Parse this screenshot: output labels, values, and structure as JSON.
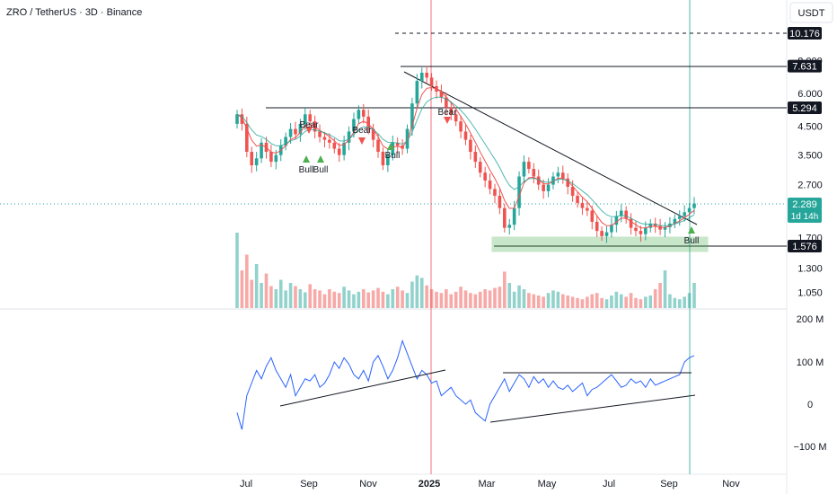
{
  "header": {
    "symbol_title": "ZRO / TetherUS · 3D · Binance",
    "currency_button": "USDT"
  },
  "chart_data": [
    {
      "type": "candlestick",
      "title": "ZRO / TetherUS · 3D · Binance",
      "scale": "log",
      "price_axis_ticks": [
        1.05,
        1.3,
        1.7,
        2.7,
        3.5,
        4.5,
        6.0,
        8.0
      ],
      "price_axis_tick_labels": [
        "1.050",
        "1.300",
        "1.700",
        "2.700",
        "3.500",
        "4.500",
        "6.000",
        "8.000"
      ],
      "time_axis_labels": [
        "Jul",
        "Sep",
        "Nov",
        "2025",
        "Mar",
        "May",
        "Jul",
        "Sep",
        "Nov"
      ],
      "price_labels": [
        {
          "value": 10.176,
          "text": "10.176",
          "style": "dashed"
        },
        {
          "value": 7.631,
          "text": "7.631",
          "style": "solid"
        },
        {
          "value": 5.294,
          "text": "5.294",
          "style": "solid"
        },
        {
          "value": 2.289,
          "text": "2.289",
          "style": "current",
          "countdown": "1d 14h"
        },
        {
          "value": 1.576,
          "text": "1.576",
          "style": "solid"
        }
      ],
      "signal_labels": [
        "Bear",
        "Bull",
        "Bull",
        "Bear",
        "Bull",
        "Bear",
        "Bull"
      ],
      "close_series": [
        5.0,
        4.6,
        3.6,
        3.2,
        3.4,
        3.9,
        3.6,
        3.3,
        3.5,
        3.8,
        4.1,
        4.4,
        4.2,
        4.6,
        5.0,
        4.7,
        4.3,
        4.1,
        4.0,
        3.9,
        3.7,
        3.5,
        3.9,
        4.3,
        4.8,
        5.2,
        4.9,
        4.4,
        4.0,
        3.6,
        3.2,
        3.5,
        3.9,
        3.8,
        3.7,
        4.4,
        5.5,
        6.7,
        7.2,
        6.9,
        6.4,
        6.1,
        5.8,
        5.3,
        5.0,
        4.7,
        4.3,
        4.0,
        3.6,
        3.3,
        3.0,
        2.8,
        2.6,
        2.45,
        2.2,
        1.85,
        1.9,
        2.2,
        2.9,
        3.3,
        3.1,
        2.9,
        2.7,
        2.55,
        2.7,
        2.9,
        3.0,
        2.85,
        2.65,
        2.45,
        2.3,
        2.2,
        2.15,
        1.95,
        1.8,
        1.72,
        1.78,
        1.9,
        2.05,
        2.15,
        2.0,
        1.85,
        1.8,
        1.75,
        1.85,
        1.92,
        1.88,
        1.82,
        1.86,
        1.92,
        2.0,
        2.05,
        2.12,
        2.2,
        2.289
      ],
      "volume_series": [
        120,
        60,
        85,
        45,
        70,
        40,
        55,
        35,
        30,
        45,
        28,
        40,
        35,
        30,
        25,
        38,
        30,
        28,
        22,
        30,
        26,
        24,
        34,
        28,
        22,
        26,
        30,
        25,
        28,
        32,
        26,
        22,
        30,
        34,
        28,
        24,
        42,
        52,
        48,
        36,
        30,
        26,
        24,
        30,
        22,
        26,
        34,
        28,
        24,
        22,
        26,
        30,
        28,
        32,
        34,
        58,
        40,
        26,
        36,
        30,
        24,
        22,
        20,
        18,
        24,
        28,
        26,
        22,
        20,
        18,
        16,
        14,
        18,
        22,
        24,
        16,
        14,
        20,
        26,
        22,
        18,
        24,
        16,
        14,
        18,
        20,
        30,
        40,
        60,
        22,
        16,
        14,
        18,
        24,
        40
      ],
      "volume_axis_labels": [
        "200 M",
        "100 M",
        "0",
        "−100 M"
      ],
      "volume_delta_series": [
        -20,
        -60,
        20,
        50,
        80,
        60,
        90,
        110,
        80,
        60,
        40,
        70,
        20,
        40,
        60,
        55,
        70,
        40,
        50,
        70,
        100,
        85,
        110,
        95,
        70,
        60,
        80,
        55,
        100,
        115,
        90,
        60,
        80,
        110,
        150,
        120,
        90,
        60,
        80,
        70,
        50,
        55,
        20,
        30,
        40,
        20,
        10,
        0,
        10,
        -20,
        -30,
        -40,
        0,
        20,
        40,
        60,
        30,
        50,
        70,
        60,
        40,
        65,
        50,
        60,
        40,
        55,
        40,
        35,
        45,
        30,
        40,
        50,
        20,
        35,
        40,
        50,
        60,
        70,
        55,
        40,
        45,
        60,
        50,
        55,
        40,
        60,
        45,
        50,
        55,
        60,
        65,
        70,
        100,
        110,
        115
      ]
    }
  ]
}
